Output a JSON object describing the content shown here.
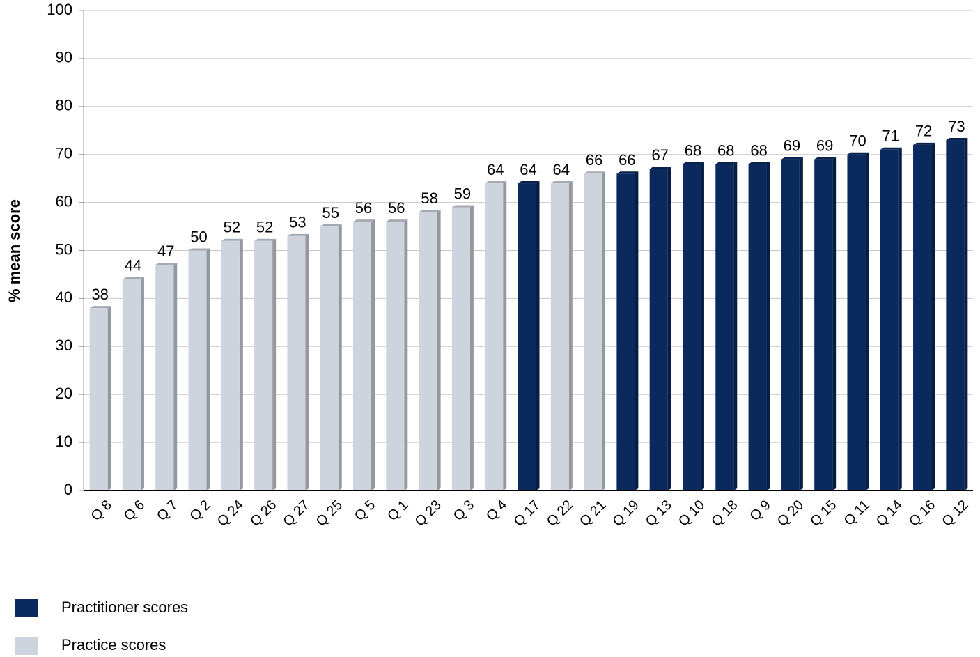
{
  "chart_data": {
    "type": "bar",
    "y_label": "% mean score",
    "categories": [
      "Q 8",
      "Q 6",
      "Q 7",
      "Q 2",
      "Q 24",
      "Q 26",
      "Q 27",
      "Q 25",
      "Q 5",
      "Q 1",
      "Q 23",
      "Q 3",
      "Q 4",
      "Q 17",
      "Q 22",
      "Q 21",
      "Q 19",
      "Q 13",
      "Q 10",
      "Q 18",
      "Q 9",
      "Q 20",
      "Q 15",
      "Q 11",
      "Q 14",
      "Q 16",
      "Q 12"
    ],
    "series": [
      {
        "name": "Practitioner scores",
        "color": "#0a2a5e",
        "values": [
          null,
          null,
          null,
          null,
          null,
          null,
          null,
          null,
          null,
          null,
          null,
          null,
          null,
          64,
          null,
          null,
          66,
          67,
          68,
          68,
          68,
          69,
          69,
          70,
          71,
          72,
          73
        ]
      },
      {
        "name": "Practice scores",
        "color": "#cdd4de",
        "values": [
          38,
          44,
          47,
          50,
          52,
          52,
          53,
          55,
          56,
          56,
          58,
          59,
          64,
          null,
          64,
          66,
          null,
          null,
          null,
          null,
          null,
          null,
          null,
          null,
          null,
          null,
          null
        ]
      }
    ],
    "ylim": [
      0,
      100
    ],
    "yticks": [
      0,
      10,
      20,
      30,
      40,
      50,
      60,
      70,
      80,
      90,
      100
    ],
    "grid": true,
    "legend": "bottom-left"
  }
}
